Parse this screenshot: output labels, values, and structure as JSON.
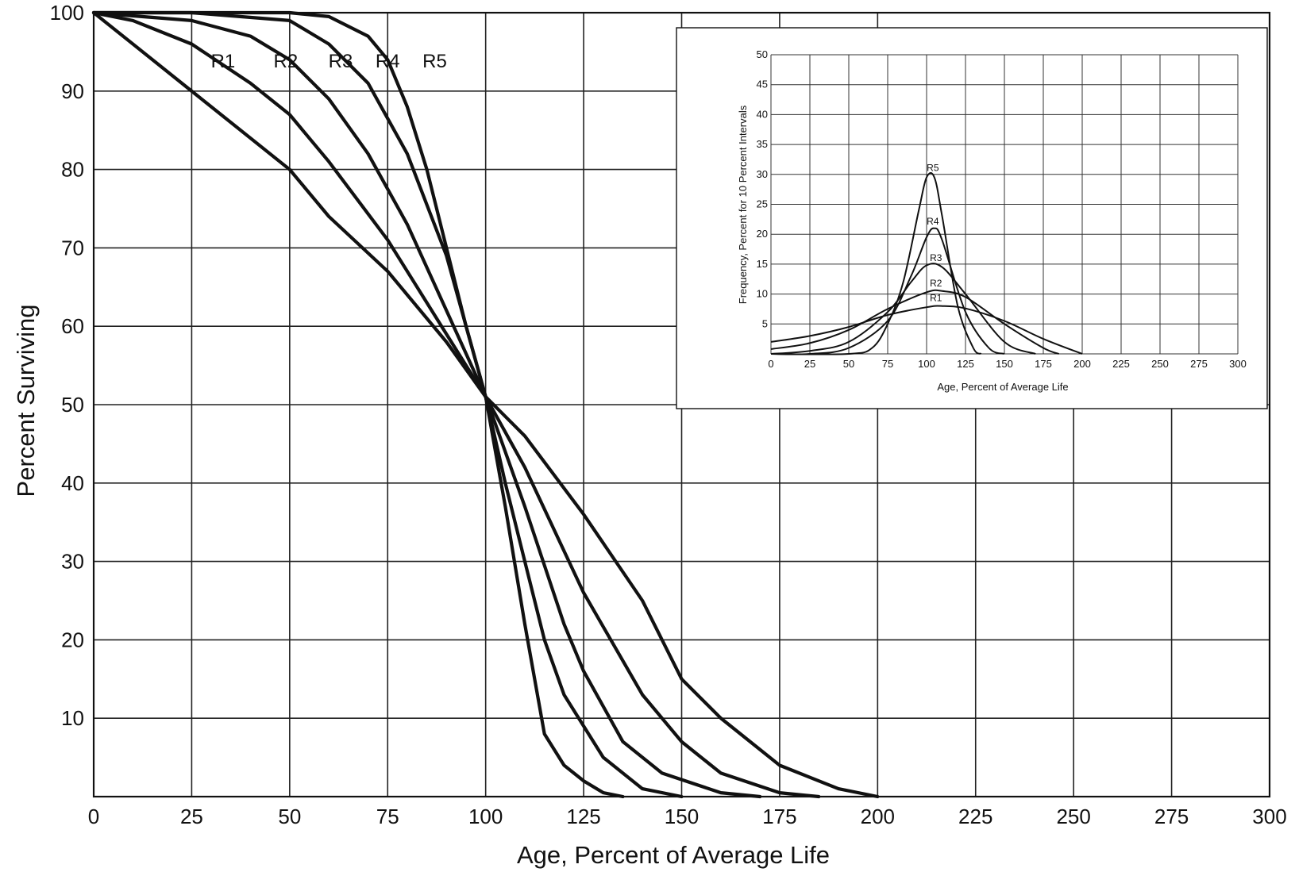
{
  "chart_data": [
    {
      "id": "survivor",
      "type": "line",
      "title": "",
      "xlabel": "Age, Percent of Average Life",
      "ylabel": "Percent Surviving",
      "xlim": [
        0,
        300
      ],
      "ylim": [
        0,
        100
      ],
      "x_ticks": [
        0,
        25,
        50,
        75,
        100,
        125,
        150,
        175,
        200,
        225,
        250,
        275,
        300
      ],
      "y_ticks": [
        10,
        20,
        30,
        40,
        50,
        60,
        70,
        80,
        90,
        100
      ],
      "grid": true,
      "series": [
        {
          "name": "R1",
          "x": [
            0,
            10,
            25,
            40,
            50,
            60,
            75,
            90,
            100,
            110,
            125,
            140,
            150,
            160,
            175,
            190,
            200
          ],
          "y": [
            100,
            96,
            90,
            84,
            80,
            74,
            67,
            58,
            51,
            46,
            36,
            25,
            15,
            10,
            4,
            1,
            0
          ]
        },
        {
          "name": "R2",
          "x": [
            0,
            10,
            25,
            40,
            50,
            60,
            75,
            90,
            100,
            110,
            125,
            140,
            150,
            160,
            175,
            185
          ],
          "y": [
            100,
            99,
            96,
            91,
            87,
            81,
            71,
            59,
            51,
            42,
            26,
            13,
            7,
            3,
            0.5,
            0
          ]
        },
        {
          "name": "R3",
          "x": [
            0,
            25,
            40,
            50,
            60,
            70,
            80,
            90,
            100,
            110,
            120,
            125,
            135,
            145,
            160,
            170
          ],
          "y": [
            100,
            99,
            97,
            94,
            89,
            82,
            73,
            62,
            51,
            37,
            22,
            16,
            7,
            3,
            0.5,
            0
          ]
        },
        {
          "name": "R4",
          "x": [
            0,
            25,
            50,
            60,
            70,
            80,
            90,
            100,
            105,
            110,
            115,
            120,
            125,
            130,
            140,
            150
          ],
          "y": [
            100,
            100,
            99,
            96,
            91,
            82,
            69,
            51,
            40,
            30,
            20,
            13,
            9,
            5,
            1,
            0
          ]
        },
        {
          "name": "R5",
          "x": [
            0,
            25,
            50,
            60,
            70,
            75,
            80,
            85,
            90,
            95,
            100,
            105,
            110,
            115,
            120,
            125,
            130,
            135
          ],
          "y": [
            100,
            100,
            100,
            99.5,
            97,
            94,
            88,
            80,
            70,
            60,
            51,
            37,
            22,
            8,
            4,
            2,
            0.5,
            0
          ]
        }
      ]
    },
    {
      "id": "frequency",
      "type": "line",
      "title": "",
      "xlabel": "Age, Percent of Average Life",
      "ylabel": "Frequency, Percent for 10 Percent Intervals",
      "xlim": [
        0,
        300
      ],
      "ylim": [
        0,
        50
      ],
      "x_ticks": [
        0,
        25,
        50,
        75,
        100,
        125,
        150,
        175,
        200,
        225,
        250,
        275,
        300
      ],
      "y_ticks": [
        5,
        10,
        15,
        20,
        25,
        30,
        35,
        40,
        45,
        50
      ],
      "grid": true,
      "series": [
        {
          "name": "R1",
          "x": [
            0,
            25,
            50,
            75,
            100,
            110,
            125,
            150,
            175,
            200
          ],
          "y": [
            2,
            3,
            4.5,
            6.5,
            7.8,
            8,
            7.6,
            5.5,
            2.5,
            0
          ]
        },
        {
          "name": "R2",
          "x": [
            0,
            25,
            50,
            75,
            100,
            110,
            125,
            150,
            175,
            185
          ],
          "y": [
            0.8,
            1.8,
            4,
            7.5,
            10.3,
            10.5,
            9.5,
            5,
            1,
            0
          ]
        },
        {
          "name": "R3",
          "x": [
            0,
            25,
            50,
            75,
            90,
            100,
            110,
            125,
            150,
            170
          ],
          "y": [
            0,
            0.5,
            2,
            7,
            12,
            14.8,
            14.5,
            10,
            2,
            0
          ]
        },
        {
          "name": "R4",
          "x": [
            0,
            25,
            50,
            75,
            90,
            100,
            105,
            110,
            125,
            140,
            150
          ],
          "y": [
            0,
            0,
            1,
            5.5,
            13,
            19.5,
            21,
            19,
            7,
            1,
            0
          ]
        },
        {
          "name": "R5",
          "x": [
            0,
            50,
            65,
            75,
            85,
            95,
            100,
            105,
            110,
            120,
            130,
            135
          ],
          "y": [
            0,
            0,
            1,
            5,
            12,
            24,
            29.5,
            29.5,
            23,
            8,
            1,
            0
          ]
        }
      ]
    }
  ]
}
